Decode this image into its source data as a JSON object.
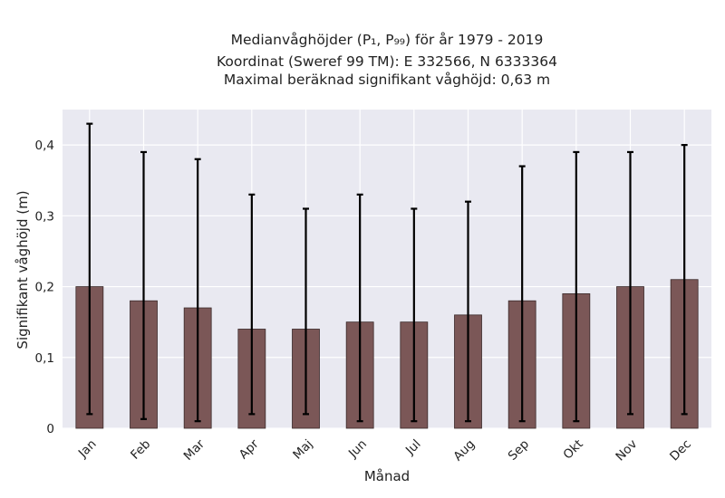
{
  "chart_data": {
    "type": "bar",
    "title_lines": [
      "Medianvåghöjder (P₁, P₉₉) för år 1979 - 2019",
      "Koordinat (Sweref 99 TM): E 332566, N 6333364",
      "Maximal beräknad signifikant våghöjd: 0,63 m"
    ],
    "xlabel": "Månad",
    "ylabel": "Signifikant våghöjd (m)",
    "categories": [
      "Jan",
      "Feb",
      "Mar",
      "Apr",
      "Maj",
      "Jun",
      "Jul",
      "Aug",
      "Sep",
      "Okt",
      "Nov",
      "Dec"
    ],
    "values": [
      0.2,
      0.18,
      0.17,
      0.14,
      0.14,
      0.15,
      0.15,
      0.16,
      0.18,
      0.19,
      0.2,
      0.21
    ],
    "p1": [
      0.02,
      0.013,
      0.01,
      0.02,
      0.02,
      0.01,
      0.01,
      0.01,
      0.01,
      0.01,
      0.02,
      0.02
    ],
    "p99": [
      0.43,
      0.39,
      0.38,
      0.33,
      0.31,
      0.33,
      0.31,
      0.32,
      0.37,
      0.39,
      0.39,
      0.4
    ],
    "ylim": [
      0,
      0.45
    ],
    "yticks": [
      0,
      0.1,
      0.2,
      0.3,
      0.4
    ],
    "ytick_labels": [
      "0",
      "0,1",
      "0,2",
      "0,3",
      "0,4"
    ],
    "grid": true,
    "colors": {
      "bar": "#7b5757",
      "bar_edge": "#3a2a2a",
      "errorbar": "#000000",
      "plot_bg": "#e9e9f1",
      "grid": "#ffffff"
    }
  }
}
